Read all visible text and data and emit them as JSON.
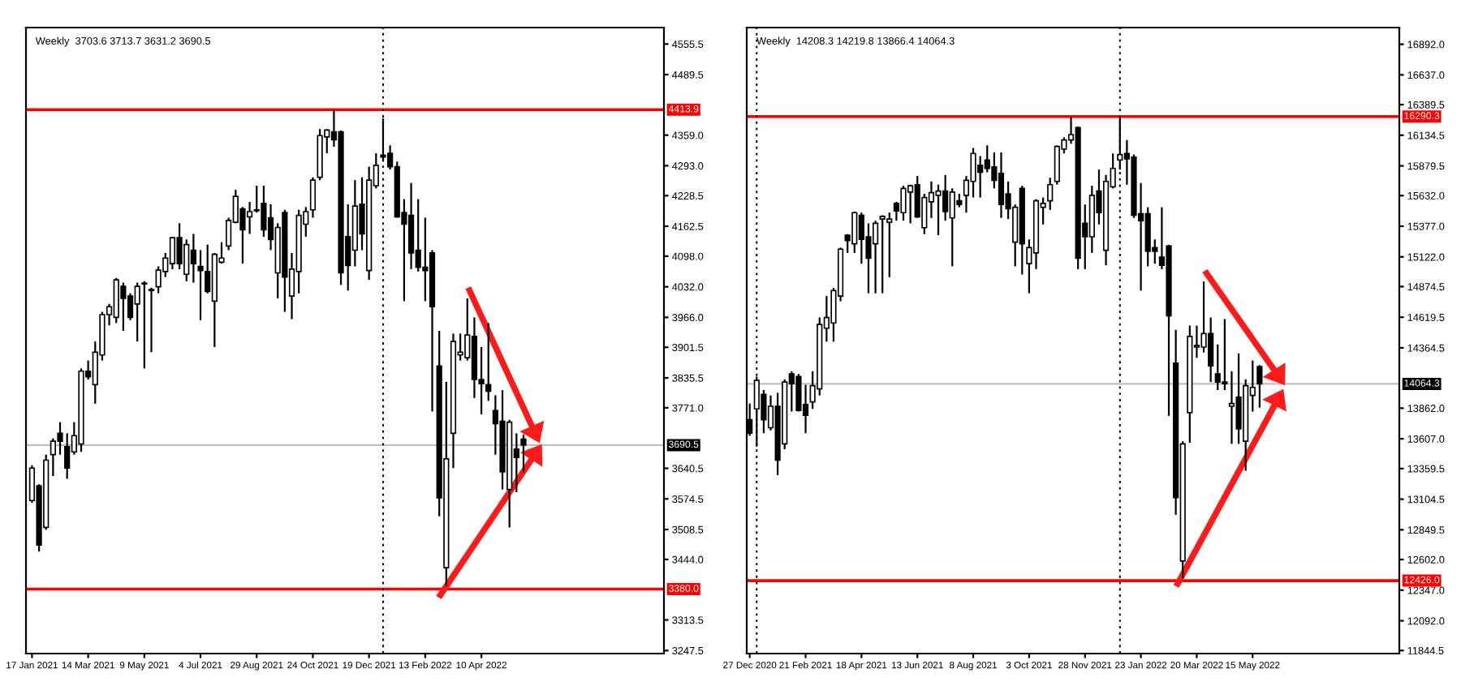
{
  "chart_data": [
    {
      "type": "candlestick",
      "title": "Weekly  3703.6 3713.7 3631.2 3690.5",
      "grid": false,
      "x": [
        "2021-01-17",
        "2021-01-24",
        "2021-01-31",
        "2021-02-07",
        "2021-02-14",
        "2021-02-21",
        "2021-02-28",
        "2021-03-07",
        "2021-03-14",
        "2021-03-21",
        "2021-03-28",
        "2021-04-04",
        "2021-04-11",
        "2021-04-18",
        "2021-04-25",
        "2021-05-02",
        "2021-05-09",
        "2021-05-16",
        "2021-05-23",
        "2021-05-30",
        "2021-06-06",
        "2021-06-13",
        "2021-06-20",
        "2021-06-27",
        "2021-07-04",
        "2021-07-11",
        "2021-07-18",
        "2021-07-25",
        "2021-08-01",
        "2021-08-08",
        "2021-08-15",
        "2021-08-22",
        "2021-08-29",
        "2021-09-05",
        "2021-09-12",
        "2021-09-19",
        "2021-09-26",
        "2021-10-03",
        "2021-10-10",
        "2021-10-17",
        "2021-10-24",
        "2021-10-31",
        "2021-11-07",
        "2021-11-14",
        "2021-11-21",
        "2021-11-28",
        "2021-12-05",
        "2021-12-12",
        "2021-12-19",
        "2021-12-26",
        "2022-01-02",
        "2022-01-09",
        "2022-01-16",
        "2022-01-23",
        "2022-01-30",
        "2022-02-06",
        "2022-02-13",
        "2022-02-20",
        "2022-02-27",
        "2022-03-06",
        "2022-03-13",
        "2022-03-20",
        "2022-03-27",
        "2022-04-03",
        "2022-04-10",
        "2022-04-17",
        "2022-04-24",
        "2022-05-01",
        "2022-05-08",
        "2022-05-15",
        "2022-05-22"
      ],
      "ohlc": [
        [
          3571,
          3647,
          3566,
          3641
        ],
        [
          3603,
          3606,
          3461,
          3475
        ],
        [
          3513,
          3670,
          3508,
          3658
        ],
        [
          3670,
          3705,
          3624,
          3699
        ],
        [
          3716,
          3740,
          3670,
          3699
        ],
        [
          3687,
          3716,
          3618,
          3641
        ],
        [
          3676,
          3740,
          3670,
          3711
        ],
        [
          3693,
          3856,
          3676,
          3850
        ],
        [
          3850,
          3873,
          3832,
          3838
        ],
        [
          3821,
          3914,
          3780,
          3891
        ],
        [
          3885,
          3978,
          3873,
          3972
        ],
        [
          3972,
          3995,
          3949,
          3989
        ],
        [
          3966,
          4051,
          3954,
          4047
        ],
        [
          4033,
          4041,
          3937,
          4007
        ],
        [
          4012,
          4018,
          3960,
          3966
        ],
        [
          3995,
          4041,
          3914,
          4033
        ],
        [
          4038,
          4044,
          3856,
          4040
        ],
        [
          4024,
          4030,
          3891,
          4026
        ],
        [
          4032,
          4076,
          4018,
          4068
        ],
        [
          4065,
          4105,
          4053,
          4094
        ],
        [
          4082,
          4140,
          4070,
          4138
        ],
        [
          4138,
          4169,
          4070,
          4082
        ],
        [
          4059,
          4134,
          4044,
          4123
        ],
        [
          4111,
          4146,
          4041,
          4082
        ],
        [
          4076,
          4111,
          3960,
          4067
        ],
        [
          4065,
          4123,
          4018,
          4022
        ],
        [
          4001,
          4105,
          3902,
          4102
        ],
        [
          4085,
          4128,
          4082,
          4094
        ],
        [
          4120,
          4181,
          4111,
          4175
        ],
        [
          4171,
          4241,
          4169,
          4227
        ],
        [
          4200,
          4204,
          4082,
          4155
        ],
        [
          4183,
          4215,
          4146,
          4194
        ],
        [
          4198,
          4250,
          4192,
          4196
        ],
        [
          4212,
          4250,
          4140,
          4155
        ],
        [
          4181,
          4210,
          4111,
          4134
        ],
        [
          4062,
          4169,
          4007,
          4160
        ],
        [
          4192,
          4198,
          3978,
          4053
        ],
        [
          4012,
          4105,
          3962,
          4070
        ],
        [
          4065,
          4198,
          4018,
          4186
        ],
        [
          4167,
          4204,
          4140,
          4194
        ],
        [
          4198,
          4268,
          4181,
          4262
        ],
        [
          4268,
          4372,
          4262,
          4358
        ],
        [
          4355,
          4372,
          4320,
          4370
        ],
        [
          4366,
          4413,
          4334,
          4349
        ],
        [
          4366,
          4369,
          4036,
          4062
        ],
        [
          4140,
          4210,
          4024,
          4078
        ],
        [
          4111,
          4262,
          4076,
          4206
        ],
        [
          4210,
          4268,
          4111,
          4146
        ],
        [
          4067,
          4291,
          4047,
          4262
        ],
        [
          4250,
          4320,
          4244,
          4294
        ],
        [
          4316,
          4395,
          4302,
          4312
        ],
        [
          4320,
          4337,
          4285,
          4291
        ],
        [
          4291,
          4302,
          4181,
          4183
        ],
        [
          4192,
          4221,
          4001,
          4167
        ],
        [
          4186,
          4256,
          4070,
          4105
        ],
        [
          4111,
          4221,
          4065,
          4074
        ],
        [
          4074,
          4181,
          4001,
          4067
        ],
        [
          4105,
          4111,
          3763,
          3989
        ],
        [
          3861,
          3937,
          3537,
          3577
        ],
        [
          3426,
          3827,
          3386,
          3661
        ],
        [
          3716,
          3931,
          3641,
          3914
        ],
        [
          3885,
          3931,
          3873,
          3891
        ],
        [
          3879,
          4007,
          3873,
          3928
        ],
        [
          3925,
          3966,
          3792,
          3832
        ],
        [
          3832,
          3902,
          3757,
          3823
        ],
        [
          3821,
          3954,
          3786,
          3807
        ],
        [
          3765,
          3798,
          3670,
          3737
        ],
        [
          3742,
          3809,
          3595,
          3633
        ],
        [
          3595,
          3745,
          3513,
          3740
        ],
        [
          3682,
          3716,
          3589,
          3664
        ],
        [
          3703.6,
          3713.7,
          3631.2,
          3690.5
        ]
      ],
      "xlim": [
        "2021-01-11",
        "2022-10-09"
      ],
      "ylim": [
        3241,
        4591
      ],
      "yticks": [
        4555.5,
        4489.5,
        {
          "value": 4359,
          "label": "4359.0"
        },
        {
          "value": 4293,
          "label": "4293.0"
        },
        4228.5,
        4162.5,
        {
          "value": 4098,
          "label": "4098.0"
        },
        {
          "value": 4032,
          "label": "4032.0"
        },
        {
          "value": 3966,
          "label": "3966.0"
        },
        3901.5,
        3835.5,
        {
          "value": 3771,
          "label": "3771.0"
        },
        3640.5,
        3574.5,
        3508.5,
        {
          "value": 3444,
          "label": "3444.0"
        },
        3313.5,
        3247.5
      ],
      "xticks": [
        {
          "value": "2021-01-17",
          "label": "17 Jan 2021"
        },
        {
          "value": "2021-03-14",
          "label": "14 Mar 2021"
        },
        {
          "value": "2021-05-09",
          "label": "9 May 2021"
        },
        {
          "value": "2021-07-04",
          "label": "4 Jul 2021"
        },
        {
          "value": "2021-08-29",
          "label": "29 Aug 2021"
        },
        {
          "value": "2021-10-24",
          "label": "24 Oct 2021"
        },
        {
          "value": "2021-12-19",
          "label": "19 Dec 2021"
        },
        {
          "value": "2022-02-13",
          "label": "13 Feb 2022"
        },
        {
          "value": "2022-04-10",
          "label": "10 Apr 2022"
        }
      ],
      "ref_lines": [
        {
          "axis": "y",
          "value": 4413.9,
          "label": "4413.9",
          "color": "#ff0000"
        },
        {
          "axis": "y",
          "value": 3380.0,
          "label": "3380.0",
          "color": "#ff0000"
        },
        {
          "axis": "y",
          "value": 3690.5,
          "label": "3690.5",
          "color": "#c0c0c0"
        },
        {
          "axis": "x",
          "value": "2022-01-02",
          "color": "#000000",
          "line_style": "dotted"
        }
      ]
    },
    {
      "type": "candlestick",
      "title": "Weekly  14208.3 14219.8 13866.4 14064.3",
      "grid": false,
      "x": [
        "2020-12-27",
        "2021-01-03",
        "2021-01-10",
        "2021-01-17",
        "2021-01-24",
        "2021-01-31",
        "2021-02-07",
        "2021-02-14",
        "2021-02-21",
        "2021-02-28",
        "2021-03-07",
        "2021-03-14",
        "2021-03-21",
        "2021-03-28",
        "2021-04-04",
        "2021-04-11",
        "2021-04-18",
        "2021-04-25",
        "2021-05-02",
        "2021-05-09",
        "2021-05-16",
        "2021-05-23",
        "2021-05-30",
        "2021-06-06",
        "2021-06-13",
        "2021-06-20",
        "2021-06-27",
        "2021-07-04",
        "2021-07-11",
        "2021-07-18",
        "2021-07-25",
        "2021-08-01",
        "2021-08-08",
        "2021-08-15",
        "2021-08-22",
        "2021-08-29",
        "2021-09-05",
        "2021-09-12",
        "2021-09-19",
        "2021-09-26",
        "2021-10-03",
        "2021-10-10",
        "2021-10-17",
        "2021-10-24",
        "2021-10-31",
        "2021-11-07",
        "2021-11-14",
        "2021-11-21",
        "2021-11-28",
        "2021-12-05",
        "2021-12-12",
        "2021-12-19",
        "2021-12-26",
        "2022-01-02",
        "2022-01-09",
        "2022-01-16",
        "2022-01-23",
        "2022-01-30",
        "2022-02-06",
        "2022-02-13",
        "2022-02-20",
        "2022-02-27",
        "2022-03-06",
        "2022-03-13",
        "2022-03-20",
        "2022-03-27",
        "2022-04-03",
        "2022-04-10",
        "2022-04-17",
        "2022-04-24",
        "2022-05-01",
        "2022-05-08",
        "2022-05-15",
        "2022-05-22"
      ],
      "ohlc": [
        [
          13766,
          13901,
          13632,
          13654
        ],
        [
          13856,
          14125,
          13542,
          14093
        ],
        [
          13977,
          14013,
          13654,
          13766
        ],
        [
          13699,
          13968,
          13677,
          13878
        ],
        [
          13878,
          13990,
          13305,
          13430
        ],
        [
          13565,
          14102,
          13520,
          14080
        ],
        [
          14147,
          14169,
          13834,
          14066
        ],
        [
          14125,
          14147,
          13834,
          13843
        ],
        [
          13892,
          14057,
          13654,
          13802
        ],
        [
          13914,
          14169,
          13856,
          14049
        ],
        [
          14022,
          14617,
          13968,
          14559
        ],
        [
          14528,
          14796,
          14416,
          14617
        ],
        [
          14572,
          14864,
          14416,
          14841
        ],
        [
          14796,
          15199,
          14752,
          15186
        ],
        [
          15302,
          15311,
          15155,
          15258
        ],
        [
          15231,
          15499,
          15155,
          15490
        ],
        [
          15468,
          15490,
          15065,
          15267
        ],
        [
          15289,
          15401,
          14819,
          15110
        ],
        [
          15231,
          15423,
          14819,
          15401
        ],
        [
          15437,
          15468,
          14819,
          15459
        ],
        [
          15410,
          15490,
          14953,
          15437
        ],
        [
          15567,
          15580,
          15423,
          15504
        ],
        [
          15490,
          15714,
          15423,
          15692
        ],
        [
          15661,
          15723,
          15401,
          15714
        ],
        [
          15723,
          15795,
          15446,
          15455
        ],
        [
          15365,
          15647,
          15311,
          15616
        ],
        [
          15580,
          15750,
          15446,
          15656
        ],
        [
          15634,
          15723,
          15302,
          15670
        ],
        [
          15670,
          15804,
          15423,
          15499
        ],
        [
          15446,
          15692,
          15043,
          15661
        ],
        [
          15589,
          15647,
          15535,
          15558
        ],
        [
          15634,
          15795,
          15490,
          15759
        ],
        [
          15750,
          16028,
          15616,
          15983
        ],
        [
          15885,
          15961,
          15616,
          15826
        ],
        [
          15929,
          16050,
          15826,
          15858
        ],
        [
          15871,
          15992,
          15692,
          15759
        ],
        [
          15817,
          15992,
          15446,
          15558
        ],
        [
          15647,
          15750,
          15437,
          15522
        ],
        [
          15244,
          15558,
          15043,
          15535
        ],
        [
          15692,
          15714,
          14975,
          15231
        ],
        [
          15065,
          15267,
          14819,
          15199
        ],
        [
          15155,
          15602,
          15020,
          15589
        ],
        [
          15535,
          15616,
          15392,
          15567
        ],
        [
          15589,
          15781,
          15513,
          15723
        ],
        [
          15750,
          16050,
          15723,
          16041
        ],
        [
          16019,
          16117,
          15983,
          16095
        ],
        [
          16095,
          16288,
          16064,
          16140
        ],
        [
          16198,
          16207,
          15020,
          15110
        ],
        [
          15401,
          15558,
          15020,
          15289
        ],
        [
          15289,
          15714,
          15155,
          15634
        ],
        [
          15670,
          15849,
          15392,
          15490
        ],
        [
          15177,
          15804,
          15052,
          15750
        ],
        [
          15705,
          15983,
          15692,
          15858
        ],
        [
          15929,
          16290,
          15849,
          15974
        ],
        [
          15983,
          16095,
          15723,
          15938
        ],
        [
          15952,
          15974,
          15446,
          15468
        ],
        [
          15481,
          15737,
          14841,
          15423
        ],
        [
          15481,
          15535,
          15043,
          15168
        ],
        [
          15199,
          15267,
          15065,
          15168
        ],
        [
          15119,
          15535,
          15020,
          15052
        ],
        [
          15213,
          15222,
          13798,
          14631
        ],
        [
          14237,
          14514,
          12974,
          13117
        ],
        [
          12589,
          13587,
          12445,
          13565
        ],
        [
          13825,
          14550,
          13574,
          14460
        ],
        [
          14371,
          14550,
          14281,
          14384
        ],
        [
          14371,
          14917,
          14326,
          14483
        ],
        [
          14483,
          14617,
          14080,
          14214
        ],
        [
          14147,
          14393,
          14013,
          14080
        ],
        [
          14080,
          14604,
          14013,
          14066
        ],
        [
          13878,
          14169,
          13565,
          13901
        ],
        [
          13954,
          14317,
          13565,
          13690
        ],
        [
          13587,
          14102,
          13341,
          14049
        ],
        [
          13968,
          14259,
          13834,
          14035
        ],
        [
          14208.3,
          14219.8,
          13866.4,
          14064.3
        ]
      ],
      "xlim": [
        "2020-12-24",
        "2022-10-09"
      ],
      "ylim": [
        11819,
        17031
      ],
      "yticks": [
        {
          "value": 16892,
          "label": "16892.0"
        },
        {
          "value": 16637,
          "label": "16637.0"
        },
        16389.5,
        16134.5,
        15879.5,
        {
          "value": 15632,
          "label": "15632.0"
        },
        {
          "value": 15377,
          "label": "15377.0"
        },
        {
          "value": 15122,
          "label": "15122.0"
        },
        14874.5,
        14619.5,
        14364.5,
        {
          "value": 13862,
          "label": "13862.0"
        },
        {
          "value": 13607,
          "label": "13607.0"
        },
        13359.5,
        13104.5,
        12849.5,
        {
          "value": 12602,
          "label": "12602.0"
        },
        {
          "value": 12347,
          "label": "12347.0"
        },
        {
          "value": 12092,
          "label": "12092.0"
        },
        11844.5
      ],
      "xticks": [
        {
          "value": "2020-12-27",
          "label": "27 Dec 2020"
        },
        {
          "value": "2021-02-21",
          "label": "21 Feb 2021"
        },
        {
          "value": "2021-04-18",
          "label": "18 Apr 2021"
        },
        {
          "value": "2021-06-13",
          "label": "13 Jun 2021"
        },
        {
          "value": "2021-08-08",
          "label": "8 Aug 2021"
        },
        {
          "value": "2021-10-03",
          "label": "3 Oct 2021"
        },
        {
          "value": "2021-11-28",
          "label": "28 Nov 2021"
        },
        {
          "value": "2022-01-23",
          "label": "23 Jan 2022"
        },
        {
          "value": "2022-03-20",
          "label": "20 Mar 2022"
        },
        {
          "value": "2022-05-15",
          "label": "15 May 2022"
        }
      ],
      "ref_lines": [
        {
          "axis": "y",
          "value": 16290.3,
          "label": "16290.3",
          "color": "#ff0000"
        },
        {
          "axis": "y",
          "value": 12426.0,
          "label": "12426.0",
          "color": "#ff0000"
        },
        {
          "axis": "y",
          "value": 14064.3,
          "label": "14064.3",
          "color": "#c0c0c0"
        },
        {
          "axis": "x",
          "value": "2021-01-03",
          "color": "#000000",
          "line_style": "dotted"
        },
        {
          "axis": "x",
          "value": "2022-01-02",
          "color": "#000000",
          "line_style": "dotted"
        }
      ]
    }
  ]
}
